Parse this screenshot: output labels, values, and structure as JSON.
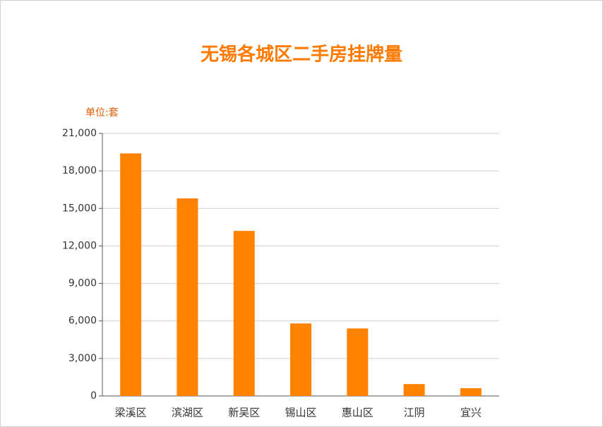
{
  "chart_data": {
    "type": "bar",
    "title": "无锡各城区二手房挂牌量",
    "y_label": "单位:套",
    "categories": [
      "梁溪区",
      "滨湖区",
      "新吴区",
      "锡山区",
      "惠山区",
      "江阴",
      "宜兴"
    ],
    "values": [
      19400,
      15800,
      13200,
      5800,
      5400,
      950,
      620
    ],
    "color": "#ff8200",
    "ylim": [
      0,
      21000
    ],
    "yticks": [
      0,
      {
        "value": 3000,
        "label": "3,000"
      },
      {
        "value": 6000,
        "label": "6,000"
      },
      {
        "value": 9000,
        "label": "9,000"
      },
      {
        "value": 12000,
        "label": "12,000"
      },
      {
        "value": 15000,
        "label": "15,000"
      },
      {
        "value": 18000,
        "label": "18,000"
      },
      {
        "value": 21000,
        "label": "21,000"
      }
    ],
    "grid": true
  }
}
